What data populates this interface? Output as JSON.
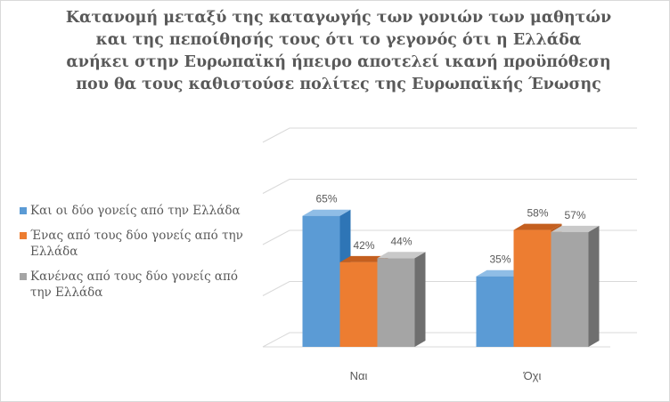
{
  "chart_data": {
    "type": "bar",
    "title": "Κατανομή μεταξύ της καταγωγής των γονιών των μαθητών και της πεποίθησής τους ότι το γεγονός ότι η Ελλάδα ανήκει στην Ευρωπαϊκή ήπειρο αποτελεί ικανή προϋπόθεση που θα τους καθιστούσε πολίτες της Ευρωπαϊκής Ένωσης",
    "categories": [
      "Ναι",
      "Όχι"
    ],
    "series": [
      {
        "name": "Και οι δύο γονείς από την Ελλάδα",
        "values": [
          65,
          35
        ],
        "labels": [
          "65%",
          "35%"
        ],
        "color": "#5b9bd5",
        "side_color": "#2e75b6",
        "top_color": "#8fbde6"
      },
      {
        "name": "Ένας από τους δύο γονείς από την Ελλάδα",
        "values": [
          42,
          58
        ],
        "labels": [
          "42%",
          "58%"
        ],
        "color": "#ed7d31",
        "side_color": "#b85a1e",
        "top_color": "#c45f1f"
      },
      {
        "name": "Κανένας από τους δύο γονείς από την Ελλάδα",
        "values": [
          44,
          57
        ],
        "labels": [
          "44%",
          "57%"
        ],
        "color": "#a5a5a5",
        "side_color": "#6f6f6f",
        "top_color": "#c9c9c9"
      }
    ],
    "ylim": [
      0,
      100
    ],
    "grid": true,
    "legend_position": "left",
    "three_d": true
  }
}
